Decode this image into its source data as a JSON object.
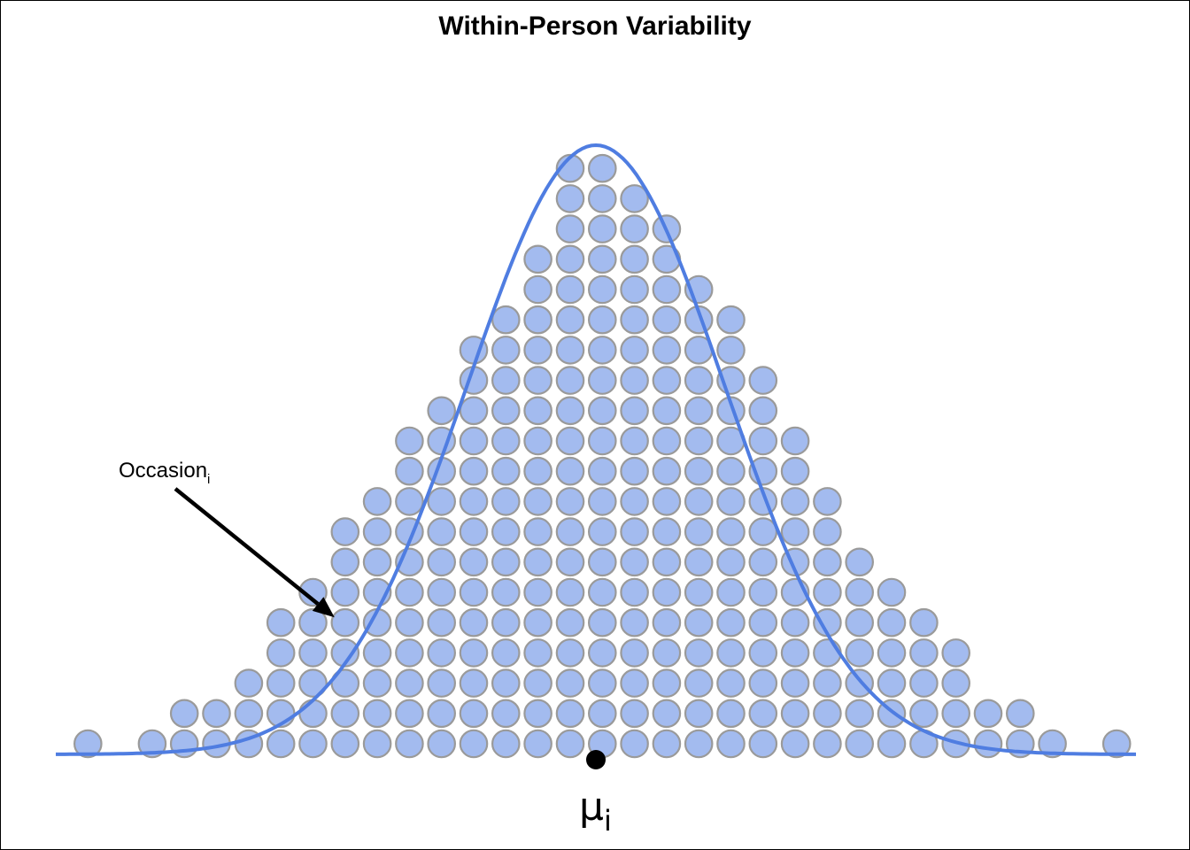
{
  "chart_data": {
    "type": "dotplot",
    "title": "Within-Person Variability",
    "x_range": [
      -4.2,
      4.2
    ],
    "mean": 0,
    "curve": {
      "distribution": "normal",
      "mean": 0,
      "sd": 1,
      "color": "#4f7de1"
    },
    "dot_fill": "#a3bbef",
    "dot_stroke": "#9a9a9a",
    "bins": [
      {
        "x": -3.95,
        "count": 1
      },
      {
        "x": -3.45,
        "count": 1
      },
      {
        "x": -3.2,
        "count": 2
      },
      {
        "x": -2.95,
        "count": 2
      },
      {
        "x": -2.7,
        "count": 3
      },
      {
        "x": -2.45,
        "count": 5
      },
      {
        "x": -2.2,
        "count": 6
      },
      {
        "x": -1.95,
        "count": 8
      },
      {
        "x": -1.7,
        "count": 9
      },
      {
        "x": -1.45,
        "count": 11
      },
      {
        "x": -1.2,
        "count": 12
      },
      {
        "x": -0.95,
        "count": 14
      },
      {
        "x": -0.7,
        "count": 15
      },
      {
        "x": -0.45,
        "count": 17
      },
      {
        "x": -0.2,
        "count": 20
      },
      {
        "x": 0.05,
        "count": 20
      },
      {
        "x": 0.3,
        "count": 19
      },
      {
        "x": 0.55,
        "count": 18
      },
      {
        "x": 0.8,
        "count": 16
      },
      {
        "x": 1.05,
        "count": 15
      },
      {
        "x": 1.3,
        "count": 13
      },
      {
        "x": 1.55,
        "count": 11
      },
      {
        "x": 1.8,
        "count": 9
      },
      {
        "x": 2.05,
        "count": 7
      },
      {
        "x": 2.3,
        "count": 6
      },
      {
        "x": 2.55,
        "count": 5
      },
      {
        "x": 2.8,
        "count": 4
      },
      {
        "x": 3.05,
        "count": 2
      },
      {
        "x": 3.3,
        "count": 2
      },
      {
        "x": 3.55,
        "count": 1
      },
      {
        "x": 4.05,
        "count": 1
      }
    ],
    "annotations": [
      {
        "text": "Occasion",
        "subscript": "i",
        "target": {
          "x": -1.95,
          "row": 4
        }
      }
    ],
    "mean_label": {
      "symbol": "μ",
      "subscript": "i"
    }
  }
}
